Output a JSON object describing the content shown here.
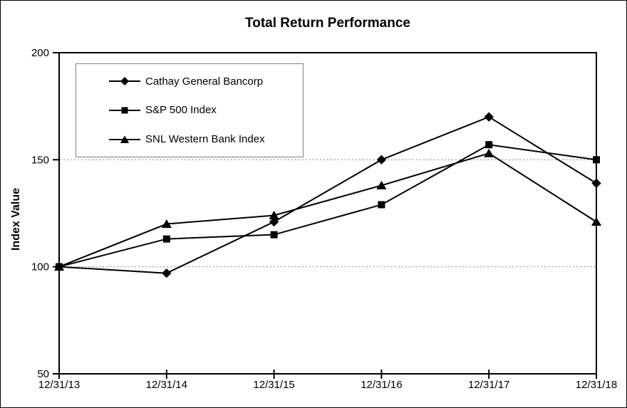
{
  "chart_data": {
    "type": "line",
    "title": "Total Return Performance",
    "xlabel": "",
    "ylabel": "Index Value",
    "categories": [
      "12/31/13",
      "12/31/14",
      "12/31/15",
      "12/31/16",
      "12/31/17",
      "12/31/18"
    ],
    "y_ticks": [
      50,
      100,
      150,
      200
    ],
    "ylim": [
      50,
      200
    ],
    "gridlines_y": [
      100,
      150
    ],
    "grid_style": "dotted",
    "grid_on": true,
    "legend_position": "top-left-inside",
    "series": [
      {
        "name": "Cathay General Bancorp",
        "marker": "diamond",
        "values": [
          100,
          97,
          121,
          150,
          170,
          139
        ]
      },
      {
        "name": "S&P 500 Index",
        "marker": "square",
        "values": [
          100,
          113,
          115,
          129,
          157,
          150
        ]
      },
      {
        "name": "SNL Western Bank Index",
        "marker": "triangle",
        "values": [
          100,
          120,
          124,
          138,
          153,
          121
        ]
      }
    ],
    "colors": {
      "line": "#000000",
      "marker": "#000000",
      "grid": "#888888",
      "axis": "#000000",
      "legend_border": "#808080",
      "background": "#ffffff"
    }
  }
}
